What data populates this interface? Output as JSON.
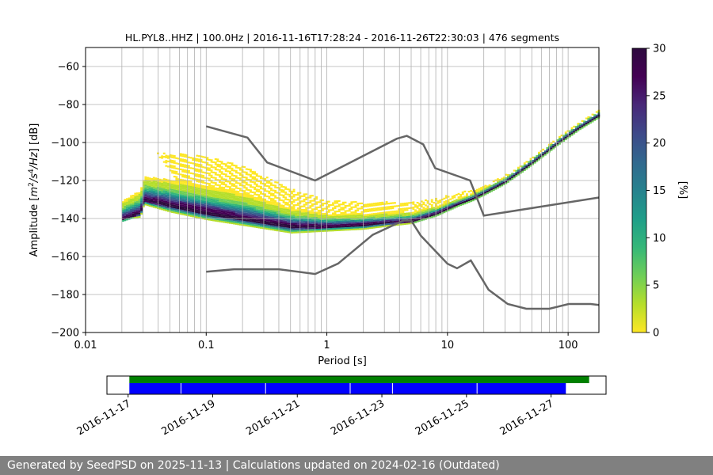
{
  "footer": {
    "text": "Generated by SeedPSD on 2025-11-13 | Calculations updated on 2024-02-16 (Outdated)"
  },
  "chart_data": [
    {
      "type": "heatmap",
      "title": "HL.PYL8..HHZ | 100.0Hz | 2016-11-16T17:28:24 - 2016-11-26T22:30:03 | 476 segments",
      "xlabel": "Period [s]",
      "ylabel_parts": [
        "Amplitude [",
        "m",
        "2",
        "/",
        "s",
        "4",
        "/",
        "Hz",
        "] [dB]"
      ],
      "x_scale": "log",
      "xlim": [
        0.01,
        180
      ],
      "ylim": [
        -200,
        -50
      ],
      "x_ticks": [
        {
          "v": 0.01,
          "label": "0.01"
        },
        {
          "v": 0.1,
          "label": "0.1"
        },
        {
          "v": 1,
          "label": "1"
        },
        {
          "v": 10,
          "label": "10"
        },
        {
          "v": 100,
          "label": "100"
        }
      ],
      "y_ticks": [
        {
          "v": -200,
          "label": "−200"
        },
        {
          "v": -180,
          "label": "−180"
        },
        {
          "v": -160,
          "label": "−160"
        },
        {
          "v": -140,
          "label": "−140"
        },
        {
          "v": -120,
          "label": "−120"
        },
        {
          "v": -100,
          "label": "−100"
        },
        {
          "v": -80,
          "label": "−80"
        },
        {
          "v": -60,
          "label": "−60"
        }
      ],
      "grid": true,
      "psd_mode_curve": [
        [
          0.02,
          -140
        ],
        [
          0.028,
          -137
        ],
        [
          0.03,
          -130
        ],
        [
          0.05,
          -133
        ],
        [
          0.1,
          -137
        ],
        [
          0.2,
          -140
        ],
        [
          0.5,
          -144
        ],
        [
          1.0,
          -144
        ],
        [
          2.0,
          -143
        ],
        [
          3.0,
          -142
        ],
        [
          5.0,
          -141
        ],
        [
          8.0,
          -137
        ],
        [
          12.0,
          -132
        ],
        [
          16.0,
          -129
        ],
        [
          20.0,
          -126
        ],
        [
          30.0,
          -120
        ],
        [
          50.0,
          -110
        ],
        [
          80.0,
          -100
        ],
        [
          120.0,
          -92
        ],
        [
          180.0,
          -85
        ]
      ],
      "psd_spread": [
        [
          0.02,
          20,
          0
        ],
        [
          0.03,
          25,
          2
        ],
        [
          0.05,
          28,
          3
        ],
        [
          0.1,
          30,
          3
        ],
        [
          0.2,
          28,
          3
        ],
        [
          0.5,
          20,
          3
        ],
        [
          1.0,
          14,
          2
        ],
        [
          2.0,
          12,
          2
        ],
        [
          5.0,
          10,
          1
        ],
        [
          8.0,
          8,
          1
        ],
        [
          12.0,
          6,
          1
        ],
        [
          20.0,
          4,
          1
        ],
        [
          50.0,
          3,
          1
        ],
        [
          180.0,
          3,
          1
        ]
      ],
      "nhnm": [
        [
          0.1,
          -91.5
        ],
        [
          0.22,
          -97.4
        ],
        [
          0.32,
          -110.5
        ],
        [
          0.8,
          -120.0
        ],
        [
          3.8,
          -98.0
        ],
        [
          4.6,
          -96.5
        ],
        [
          6.3,
          -101.0
        ],
        [
          7.9,
          -113.5
        ],
        [
          15.4,
          -120.0
        ],
        [
          20.0,
          -138.5
        ],
        [
          354.8,
          -126.0
        ]
      ],
      "nlnm": [
        [
          0.1,
          -168.0
        ],
        [
          0.17,
          -166.7
        ],
        [
          0.4,
          -166.7
        ],
        [
          0.8,
          -169.2
        ],
        [
          1.24,
          -163.7
        ],
        [
          2.4,
          -148.6
        ],
        [
          4.3,
          -141.1
        ],
        [
          5.0,
          -141.1
        ],
        [
          6.0,
          -149.0
        ],
        [
          10.0,
          -163.8
        ],
        [
          12.0,
          -166.2
        ],
        [
          15.6,
          -162.1
        ],
        [
          21.9,
          -177.5
        ],
        [
          31.6,
          -185.0
        ],
        [
          45.0,
          -187.5
        ],
        [
          70.0,
          -187.5
        ],
        [
          101.0,
          -185.0
        ],
        [
          154.0,
          -185.0
        ],
        [
          328.0,
          -187.5
        ]
      ]
    },
    {
      "type": "colorbar",
      "label": "[%]",
      "range": [
        0,
        30
      ],
      "ticks": [
        {
          "v": 0,
          "label": "0"
        },
        {
          "v": 5,
          "label": "5"
        },
        {
          "v": 10,
          "label": "10"
        },
        {
          "v": 15,
          "label": "15"
        },
        {
          "v": 20,
          "label": "20"
        },
        {
          "v": 25,
          "label": "25"
        },
        {
          "v": 30,
          "label": "30"
        }
      ],
      "colormap": [
        "#fde725",
        "#b5de2b",
        "#6ece58",
        "#35b779",
        "#1f9e89",
        "#26828e",
        "#31688e",
        "#3e4989",
        "#482878",
        "#440154",
        "#2d0a3e"
      ]
    },
    {
      "type": "timeline",
      "date_ticks": [
        "2016-11-17",
        "2016-11-19",
        "2016-11-21",
        "2016-11-23",
        "2016-11-25",
        "2016-11-27"
      ],
      "xlim_days": [
        -0.5,
        11.3
      ],
      "data_bar": {
        "color": "#008000",
        "start_days": 0.03,
        "end_days": 10.9
      },
      "processed_segments": {
        "color": "#0000ff",
        "start_days": 0.03,
        "end_days": 10.35,
        "breaks_days": [
          1.25,
          3.25,
          5.25,
          6.25,
          8.25
        ]
      }
    }
  ]
}
